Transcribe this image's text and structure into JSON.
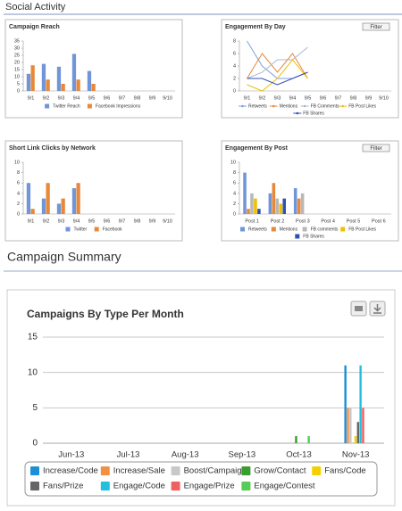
{
  "sections": [
    "Social Activity",
    "Campaign Summary"
  ],
  "chart_data": [
    {
      "type": "bar",
      "title": "Campaign Reach",
      "categories": [
        "9/1",
        "9/2",
        "9/3",
        "9/4",
        "9/5",
        "9/6",
        "9/7",
        "9/8",
        "9/9",
        "9/10"
      ],
      "series": [
        {
          "name": "Twitter Reach",
          "color": "#7196d8",
          "values": [
            12,
            19,
            17,
            26,
            14,
            null,
            null,
            null,
            null,
            null
          ]
        },
        {
          "name": "Facebook Impressions",
          "color": "#e8883a",
          "values": [
            18,
            8,
            5,
            8,
            5,
            null,
            null,
            null,
            null,
            null
          ]
        }
      ],
      "ylim": [
        0,
        35
      ],
      "yticks": [
        0,
        5,
        10,
        15,
        20,
        25,
        30,
        35
      ],
      "grid": false
    },
    {
      "type": "line",
      "title": "Engagement By Day",
      "filter_button": "Filter",
      "categories": [
        "9/1",
        "9/2",
        "9/3",
        "9/4",
        "9/5",
        "9/6",
        "9/7",
        "9/8",
        "9/9",
        "9/10"
      ],
      "series": [
        {
          "name": "Retweets",
          "color": "#7f9fe0",
          "values": [
            8,
            4,
            2,
            2,
            3,
            null,
            null,
            null,
            null,
            null
          ]
        },
        {
          "name": "Mentions",
          "color": "#e8883a",
          "values": [
            2,
            6,
            3,
            6,
            2,
            null,
            null,
            null,
            null,
            null
          ]
        },
        {
          "name": "FB Comments",
          "color": "#a8b8d0",
          "values": [
            2,
            3,
            5,
            5,
            7,
            null,
            null,
            null,
            null,
            null
          ]
        },
        {
          "name": "FB Post Likes",
          "color": "#f0c000",
          "values": [
            1,
            0,
            2,
            5,
            2,
            null,
            null,
            null,
            null,
            null
          ]
        },
        {
          "name": "FB Shares",
          "color": "#3050b0",
          "values": [
            2,
            2,
            1,
            2,
            3,
            null,
            null,
            null,
            null,
            null
          ]
        }
      ],
      "ylim": [
        0,
        8
      ],
      "yticks": [
        0,
        2,
        4,
        6,
        8
      ],
      "grid": false
    },
    {
      "type": "bar",
      "title": "Short Link Clicks by Network",
      "categories": [
        "9/1",
        "9/2",
        "9/3",
        "9/4",
        "9/5",
        "9/6",
        "9/7",
        "9/8",
        "9/9",
        "9/10"
      ],
      "series": [
        {
          "name": "Twitter",
          "color": "#7196d8",
          "values": [
            6,
            3,
            2,
            5,
            null,
            null,
            null,
            null,
            null,
            null
          ]
        },
        {
          "name": "Facebook",
          "color": "#e8883a",
          "values": [
            1,
            6,
            3,
            6,
            null,
            null,
            null,
            null,
            null,
            null
          ]
        }
      ],
      "ylim": [
        0,
        10
      ],
      "yticks": [
        0,
        2,
        4,
        6,
        8,
        10
      ],
      "grid": false
    },
    {
      "type": "bar",
      "title": "Engagement By Post",
      "filter_button": "Filter",
      "categories": [
        "Post 1",
        "Post 2",
        "Post 3",
        "Post 4",
        "Post 5",
        "Post 6"
      ],
      "series": [
        {
          "name": "Retweets",
          "color": "#7196d8",
          "values": [
            8,
            4,
            5,
            null,
            null,
            null
          ]
        },
        {
          "name": "Mentions",
          "color": "#e8883a",
          "values": [
            1,
            6,
            3,
            null,
            null,
            null
          ]
        },
        {
          "name": "FB comments",
          "color": "#b8b8b8",
          "values": [
            4,
            3,
            4,
            null,
            null,
            null
          ]
        },
        {
          "name": "FB Post Likes",
          "color": "#f0c000",
          "values": [
            3,
            2,
            null,
            null,
            null,
            null
          ]
        },
        {
          "name": "FB Shares",
          "color": "#3050b0",
          "values": [
            1,
            3,
            null,
            null,
            null,
            null
          ]
        }
      ],
      "ylim": [
        0,
        10
      ],
      "yticks": [
        0,
        2,
        4,
        6,
        8,
        10
      ],
      "grid": false
    },
    {
      "type": "bar",
      "title": "Campaigns By Type Per Month",
      "categories": [
        "Jun-13",
        "Jul-13",
        "Aug-13",
        "Sep-13",
        "Oct-13",
        "Nov-13"
      ],
      "series": [
        {
          "name": "Increase/Code",
          "color": "#1e8fd6",
          "values": [
            null,
            null,
            null,
            null,
            null,
            11
          ]
        },
        {
          "name": "Increase/Sale",
          "color": "#f28f43",
          "values": [
            null,
            null,
            null,
            null,
            null,
            5
          ]
        },
        {
          "name": "Boost/Campaign",
          "color": "#c8c8c8",
          "values": [
            null,
            null,
            null,
            null,
            null,
            5
          ]
        },
        {
          "name": "Grow/Contact",
          "color": "#3a9e2e",
          "values": [
            null,
            null,
            null,
            null,
            1,
            null
          ]
        },
        {
          "name": "Fans/Code",
          "color": "#f5d000",
          "values": [
            null,
            null,
            null,
            null,
            null,
            1
          ]
        },
        {
          "name": "Fans/Prize",
          "color": "#666666",
          "values": [
            null,
            null,
            null,
            null,
            null,
            3
          ]
        },
        {
          "name": "Engage/Code",
          "color": "#22c0dd",
          "values": [
            null,
            null,
            null,
            null,
            null,
            11
          ]
        },
        {
          "name": "Engage/Prize",
          "color": "#f06060",
          "values": [
            null,
            null,
            null,
            null,
            null,
            5
          ]
        },
        {
          "name": "Engage/Contest",
          "color": "#55cc55",
          "values": [
            null,
            null,
            null,
            null,
            1,
            null
          ]
        }
      ],
      "ylim": [
        0,
        15
      ],
      "yticks": [
        0,
        5,
        10,
        15
      ],
      "grid": true
    }
  ]
}
